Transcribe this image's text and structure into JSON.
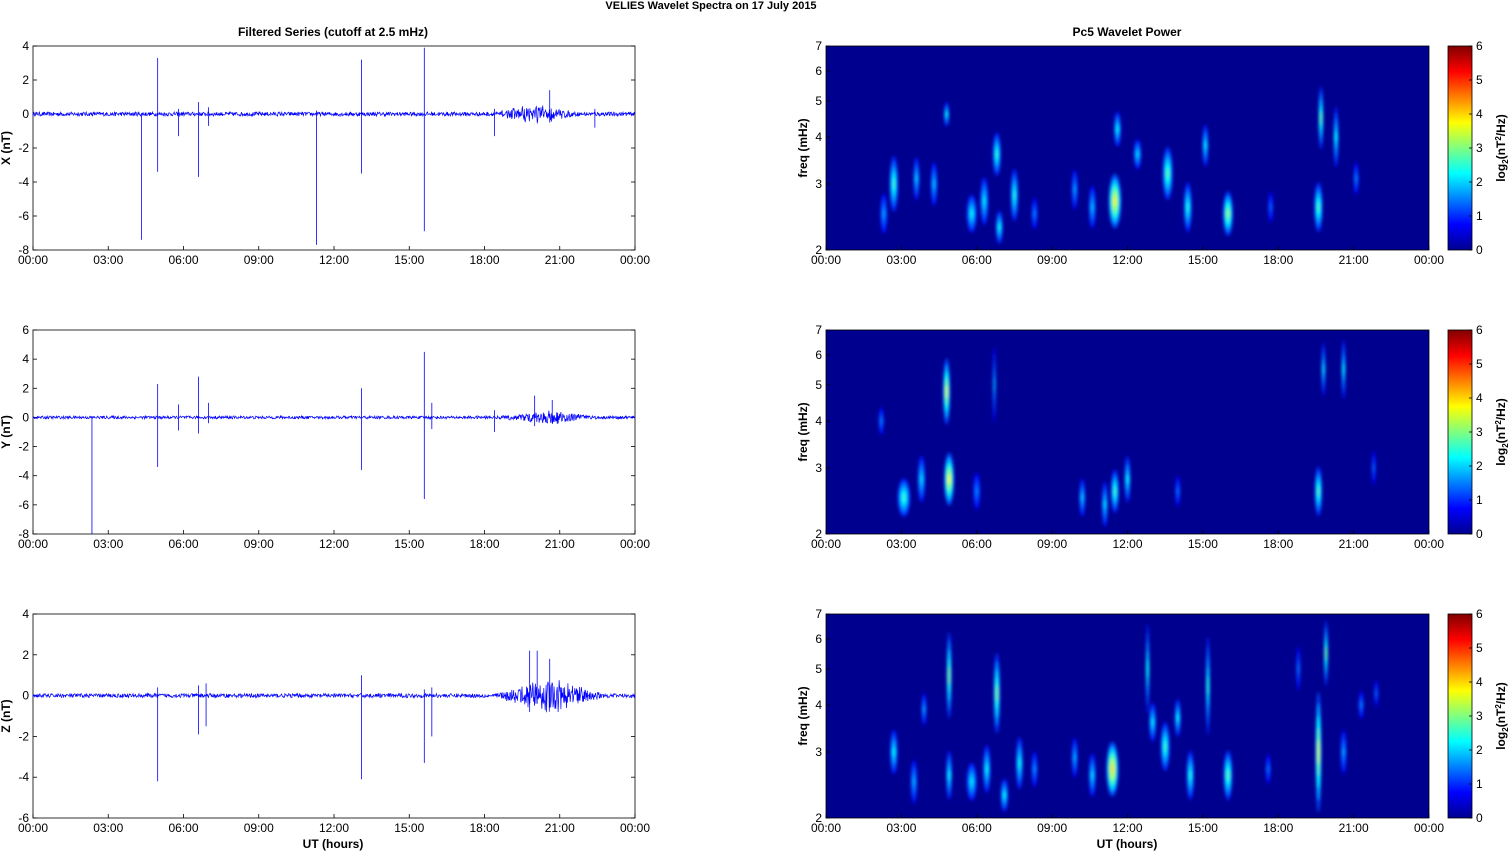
{
  "figure": {
    "title": "VELIES Wavelet Spectra on 17 July      2015"
  },
  "left_column": {
    "title": "Filtered Series (cutoff at 2.5 mHz)",
    "xlabel": "UT (hours)"
  },
  "right_column": {
    "title": "Pc5 Wavelet Power",
    "xlabel": "UT (hours)"
  },
  "colorbar": {
    "label_prefix": "log",
    "label_sub": "2",
    "label_mid": "(nT",
    "label_sup": "2",
    "label_suffix": "/Hz)",
    "ticks": [
      "0",
      "1",
      "2",
      "3",
      "4",
      "5",
      "6"
    ],
    "range": [
      0,
      6
    ],
    "colormap": "jet"
  },
  "x_ticks": [
    "00:00",
    "03:00",
    "06:00",
    "09:00",
    "12:00",
    "15:00",
    "18:00",
    "21:00",
    "00:00"
  ],
  "colors": {
    "series_line": "#0000ff",
    "spectrum_background": "#00008f"
  },
  "chart_data": [
    {
      "type": "line",
      "component": "X",
      "ylabel": "X (nT)",
      "xlim": [
        0,
        24
      ],
      "ylim": [
        -8,
        4
      ],
      "yticks": [
        "-8",
        "-6",
        "-4",
        "-2",
        "0",
        "2",
        "4"
      ],
      "baseline": 0,
      "noise_amplitude": 0.12,
      "active_interval": {
        "x": [
          18.5,
          21.6
        ],
        "amplitude": 0.6
      },
      "spikes": [
        {
          "x": 4.33,
          "min": -7.4,
          "max": 0
        },
        {
          "x": 4.97,
          "min": -3.4,
          "max": 3.3
        },
        {
          "x": 5.8,
          "min": -1.3,
          "max": 0.3
        },
        {
          "x": 6.6,
          "min": -3.7,
          "max": 0.7
        },
        {
          "x": 7.0,
          "min": -0.7,
          "max": 0.4
        },
        {
          "x": 11.3,
          "min": -7.7,
          "max": 0.2
        },
        {
          "x": 13.1,
          "min": -3.5,
          "max": 3.2
        },
        {
          "x": 15.6,
          "min": -6.9,
          "max": 3.9
        },
        {
          "x": 18.4,
          "min": -1.3,
          "max": 0.3
        },
        {
          "x": 20.6,
          "min": -0.5,
          "max": 1.4
        },
        {
          "x": 22.4,
          "min": -0.8,
          "max": 0.3
        }
      ]
    },
    {
      "type": "line",
      "component": "Y",
      "ylabel": "Y (nT)",
      "xlim": [
        0,
        24
      ],
      "ylim": [
        -8,
        6
      ],
      "yticks": [
        "-8",
        "-6",
        "-4",
        "-2",
        "0",
        "2",
        "4",
        "6"
      ],
      "baseline": 0,
      "noise_amplitude": 0.1,
      "active_interval": {
        "x": [
          18.5,
          22.5
        ],
        "amplitude": 0.45
      },
      "spikes": [
        {
          "x": 2.35,
          "min": -8.0,
          "max": 0
        },
        {
          "x": 4.97,
          "min": -3.4,
          "max": 2.3
        },
        {
          "x": 5.8,
          "min": -0.9,
          "max": 0.9
        },
        {
          "x": 6.6,
          "min": -1.1,
          "max": 2.8
        },
        {
          "x": 7.0,
          "min": -0.4,
          "max": 1.0
        },
        {
          "x": 13.1,
          "min": -3.6,
          "max": 2.0
        },
        {
          "x": 15.6,
          "min": -5.6,
          "max": 4.5
        },
        {
          "x": 15.9,
          "min": -0.8,
          "max": 1.0
        },
        {
          "x": 18.4,
          "min": -1.0,
          "max": 0.5
        },
        {
          "x": 20.0,
          "min": -0.6,
          "max": 1.5
        },
        {
          "x": 20.7,
          "min": -0.4,
          "max": 1.2
        }
      ]
    },
    {
      "type": "line",
      "component": "Z",
      "ylabel": "Z (nT)",
      "xlim": [
        0,
        24
      ],
      "ylim": [
        -6,
        4
      ],
      "yticks": [
        "-6",
        "-4",
        "-2",
        "0",
        "2",
        "4"
      ],
      "baseline": 0,
      "noise_amplitude": 0.1,
      "active_interval": {
        "x": [
          18.4,
          22.8
        ],
        "amplitude": 0.9
      },
      "spikes": [
        {
          "x": 4.97,
          "min": -4.2,
          "max": 0.4
        },
        {
          "x": 6.6,
          "min": -1.9,
          "max": 0.5
        },
        {
          "x": 6.9,
          "min": -1.5,
          "max": 0.6
        },
        {
          "x": 13.1,
          "min": -4.1,
          "max": 1.0
        },
        {
          "x": 15.6,
          "min": -3.3,
          "max": 0.3
        },
        {
          "x": 15.9,
          "min": -2.0,
          "max": 0.4
        },
        {
          "x": 19.8,
          "min": -0.8,
          "max": 2.2
        },
        {
          "x": 20.1,
          "min": -0.4,
          "max": 2.2
        },
        {
          "x": 20.6,
          "min": -0.6,
          "max": 1.8
        }
      ]
    },
    {
      "type": "heatmap",
      "component": "X",
      "ylabel": "freq (mHz)",
      "yscale": "log",
      "xlim": [
        0,
        24
      ],
      "ylim": [
        2,
        7
      ],
      "yticks": [
        "2",
        "3",
        "4",
        "5",
        "6",
        "7"
      ],
      "zlim": [
        0,
        6
      ],
      "blobs": [
        {
          "t": 2.3,
          "f": 2.5,
          "p": 1.2,
          "wt": 0.14,
          "wf": 0.22
        },
        {
          "t": 2.7,
          "f": 3.0,
          "p": 2.2,
          "wt": 0.17,
          "wf": 0.4
        },
        {
          "t": 3.6,
          "f": 3.1,
          "p": 1.5,
          "wt": 0.12,
          "wf": 0.3
        },
        {
          "t": 4.3,
          "f": 3.0,
          "p": 1.4,
          "wt": 0.13,
          "wf": 0.3
        },
        {
          "t": 4.8,
          "f": 4.6,
          "p": 1.8,
          "wt": 0.1,
          "wf": 0.18
        },
        {
          "t": 5.8,
          "f": 2.5,
          "p": 1.8,
          "wt": 0.2,
          "wf": 0.2
        },
        {
          "t": 6.3,
          "f": 2.7,
          "p": 1.7,
          "wt": 0.16,
          "wf": 0.3
        },
        {
          "t": 6.8,
          "f": 3.6,
          "p": 2.1,
          "wt": 0.16,
          "wf": 0.35
        },
        {
          "t": 6.9,
          "f": 2.3,
          "p": 1.9,
          "wt": 0.14,
          "wf": 0.15
        },
        {
          "t": 7.5,
          "f": 2.8,
          "p": 2.0,
          "wt": 0.15,
          "wf": 0.35
        },
        {
          "t": 8.3,
          "f": 2.5,
          "p": 1.0,
          "wt": 0.12,
          "wf": 0.15
        },
        {
          "t": 9.9,
          "f": 2.9,
          "p": 1.2,
          "wt": 0.12,
          "wf": 0.25
        },
        {
          "t": 10.6,
          "f": 2.6,
          "p": 1.4,
          "wt": 0.14,
          "wf": 0.25
        },
        {
          "t": 11.5,
          "f": 2.7,
          "p": 3.6,
          "wt": 0.25,
          "wf": 0.35
        },
        {
          "t": 11.6,
          "f": 4.2,
          "p": 1.8,
          "wt": 0.14,
          "wf": 0.3
        },
        {
          "t": 12.4,
          "f": 3.6,
          "p": 1.6,
          "wt": 0.15,
          "wf": 0.2
        },
        {
          "t": 13.6,
          "f": 3.2,
          "p": 2.4,
          "wt": 0.2,
          "wf": 0.4
        },
        {
          "t": 14.4,
          "f": 2.6,
          "p": 2.0,
          "wt": 0.16,
          "wf": 0.3
        },
        {
          "t": 15.1,
          "f": 3.8,
          "p": 1.7,
          "wt": 0.12,
          "wf": 0.35
        },
        {
          "t": 16.0,
          "f": 2.5,
          "p": 2.8,
          "wt": 0.2,
          "wf": 0.25
        },
        {
          "t": 17.7,
          "f": 2.6,
          "p": 0.8,
          "wt": 0.1,
          "wf": 0.15
        },
        {
          "t": 19.6,
          "f": 2.6,
          "p": 2.3,
          "wt": 0.17,
          "wf": 0.3
        },
        {
          "t": 19.7,
          "f": 4.5,
          "p": 2.4,
          "wt": 0.1,
          "wf": 0.7
        },
        {
          "t": 20.3,
          "f": 4.0,
          "p": 1.8,
          "wt": 0.1,
          "wf": 0.6
        },
        {
          "t": 21.1,
          "f": 3.1,
          "p": 1.0,
          "wt": 0.1,
          "wf": 0.2
        }
      ]
    },
    {
      "type": "heatmap",
      "component": "Y",
      "ylabel": "freq (mHz)",
      "yscale": "log",
      "xlim": [
        0,
        24
      ],
      "ylim": [
        2,
        7
      ],
      "yticks": [
        "2",
        "3",
        "4",
        "5",
        "6",
        "7"
      ],
      "zlim": [
        0,
        6
      ],
      "blobs": [
        {
          "t": 2.2,
          "f": 4.0,
          "p": 1.0,
          "wt": 0.1,
          "wf": 0.2
        },
        {
          "t": 3.1,
          "f": 2.5,
          "p": 2.2,
          "wt": 0.25,
          "wf": 0.2
        },
        {
          "t": 3.8,
          "f": 2.8,
          "p": 1.6,
          "wt": 0.15,
          "wf": 0.3
        },
        {
          "t": 4.9,
          "f": 2.8,
          "p": 3.5,
          "wt": 0.2,
          "wf": 0.35
        },
        {
          "t": 4.8,
          "f": 4.8,
          "p": 3.2,
          "wt": 0.14,
          "wf": 0.8
        },
        {
          "t": 6.0,
          "f": 2.6,
          "p": 1.0,
          "wt": 0.14,
          "wf": 0.2
        },
        {
          "t": 6.7,
          "f": 5.0,
          "p": 1.2,
          "wt": 0.06,
          "wf": 1.0
        },
        {
          "t": 10.2,
          "f": 2.5,
          "p": 1.5,
          "wt": 0.12,
          "wf": 0.2
        },
        {
          "t": 11.1,
          "f": 2.4,
          "p": 1.6,
          "wt": 0.12,
          "wf": 0.25
        },
        {
          "t": 11.5,
          "f": 2.6,
          "p": 2.2,
          "wt": 0.16,
          "wf": 0.25
        },
        {
          "t": 12.0,
          "f": 2.8,
          "p": 1.8,
          "wt": 0.12,
          "wf": 0.3
        },
        {
          "t": 14.0,
          "f": 2.6,
          "p": 0.9,
          "wt": 0.1,
          "wf": 0.15
        },
        {
          "t": 19.6,
          "f": 2.6,
          "p": 2.3,
          "wt": 0.15,
          "wf": 0.3
        },
        {
          "t": 19.8,
          "f": 5.5,
          "p": 1.6,
          "wt": 0.08,
          "wf": 0.7
        },
        {
          "t": 20.6,
          "f": 5.5,
          "p": 1.7,
          "wt": 0.08,
          "wf": 0.8
        },
        {
          "t": 21.8,
          "f": 3.0,
          "p": 0.8,
          "wt": 0.08,
          "wf": 0.2
        }
      ]
    },
    {
      "type": "heatmap",
      "component": "Z",
      "ylabel": "freq (mHz)",
      "yscale": "log",
      "xlim": [
        0,
        24
      ],
      "ylim": [
        2,
        7
      ],
      "yticks": [
        "2",
        "3",
        "4",
        "5",
        "6",
        "7"
      ],
      "zlim": [
        0,
        6
      ],
      "blobs": [
        {
          "t": 2.7,
          "f": 3.0,
          "p": 1.8,
          "wt": 0.15,
          "wf": 0.3
        },
        {
          "t": 3.5,
          "f": 2.5,
          "p": 1.3,
          "wt": 0.13,
          "wf": 0.25
        },
        {
          "t": 3.9,
          "f": 3.9,
          "p": 1.2,
          "wt": 0.1,
          "wf": 0.25
        },
        {
          "t": 4.9,
          "f": 4.8,
          "p": 2.6,
          "wt": 0.1,
          "wf": 1.1
        },
        {
          "t": 4.9,
          "f": 2.6,
          "p": 1.8,
          "wt": 0.12,
          "wf": 0.3
        },
        {
          "t": 5.8,
          "f": 2.5,
          "p": 1.7,
          "wt": 0.2,
          "wf": 0.2
        },
        {
          "t": 6.4,
          "f": 2.7,
          "p": 1.8,
          "wt": 0.15,
          "wf": 0.3
        },
        {
          "t": 6.8,
          "f": 4.3,
          "p": 2.6,
          "wt": 0.13,
          "wf": 0.9
        },
        {
          "t": 7.1,
          "f": 2.3,
          "p": 1.8,
          "wt": 0.15,
          "wf": 0.15
        },
        {
          "t": 7.7,
          "f": 2.8,
          "p": 1.9,
          "wt": 0.14,
          "wf": 0.35
        },
        {
          "t": 8.3,
          "f": 2.7,
          "p": 1.1,
          "wt": 0.12,
          "wf": 0.2
        },
        {
          "t": 9.9,
          "f": 2.9,
          "p": 1.3,
          "wt": 0.12,
          "wf": 0.25
        },
        {
          "t": 10.6,
          "f": 2.6,
          "p": 1.6,
          "wt": 0.14,
          "wf": 0.25
        },
        {
          "t": 11.4,
          "f": 2.7,
          "p": 3.8,
          "wt": 0.24,
          "wf": 0.35
        },
        {
          "t": 12.8,
          "f": 5.0,
          "p": 1.9,
          "wt": 0.07,
          "wf": 1.2
        },
        {
          "t": 13.0,
          "f": 3.6,
          "p": 1.7,
          "wt": 0.14,
          "wf": 0.3
        },
        {
          "t": 13.5,
          "f": 3.1,
          "p": 2.2,
          "wt": 0.18,
          "wf": 0.35
        },
        {
          "t": 14.0,
          "f": 3.7,
          "p": 1.8,
          "wt": 0.12,
          "wf": 0.3
        },
        {
          "t": 14.5,
          "f": 2.6,
          "p": 2.0,
          "wt": 0.15,
          "wf": 0.3
        },
        {
          "t": 15.2,
          "f": 4.5,
          "p": 2.0,
          "wt": 0.08,
          "wf": 1.2
        },
        {
          "t": 16.0,
          "f": 2.6,
          "p": 2.4,
          "wt": 0.18,
          "wf": 0.3
        },
        {
          "t": 17.6,
          "f": 2.7,
          "p": 0.9,
          "wt": 0.1,
          "wf": 0.15
        },
        {
          "t": 18.8,
          "f": 5.0,
          "p": 0.9,
          "wt": 0.08,
          "wf": 0.5
        },
        {
          "t": 19.6,
          "f": 3.0,
          "p": 3.2,
          "wt": 0.12,
          "wf": 1.0
        },
        {
          "t": 19.9,
          "f": 5.5,
          "p": 2.4,
          "wt": 0.08,
          "wf": 0.9
        },
        {
          "t": 20.6,
          "f": 3.0,
          "p": 1.2,
          "wt": 0.12,
          "wf": 0.3
        },
        {
          "t": 21.3,
          "f": 4.0,
          "p": 1.0,
          "wt": 0.1,
          "wf": 0.2
        },
        {
          "t": 21.9,
          "f": 4.3,
          "p": 0.8,
          "wt": 0.08,
          "wf": 0.2
        }
      ]
    }
  ]
}
